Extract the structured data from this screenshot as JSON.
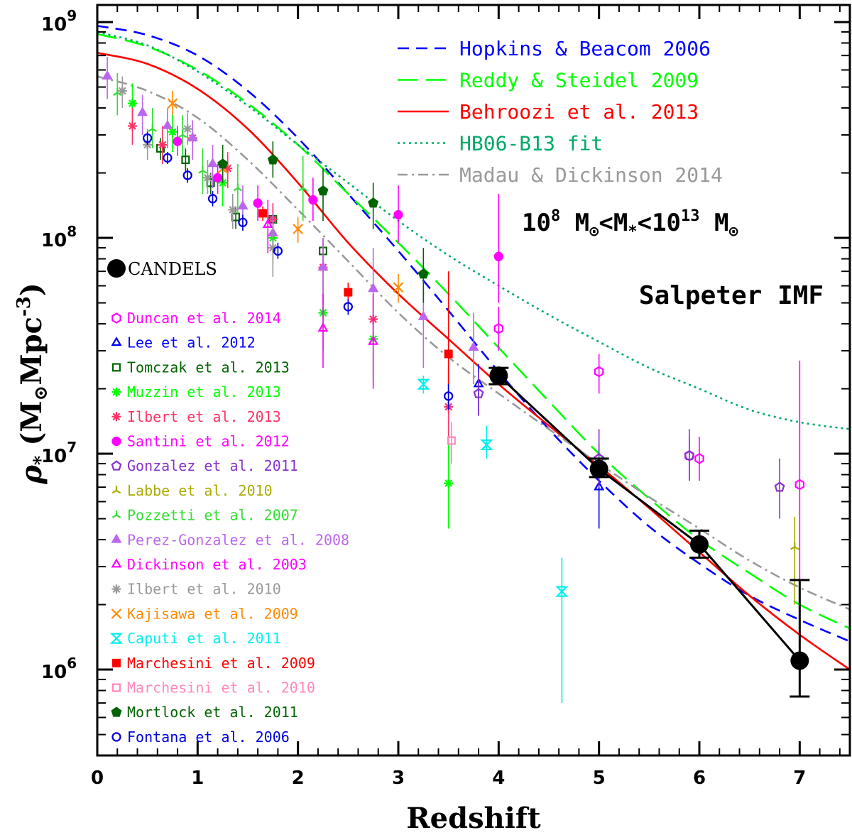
{
  "chart_data": {
    "type": "scatter",
    "xlabel": "Redshift",
    "ylabel": {
      "rho": "ρ",
      "sub": "*",
      "open": " (M",
      "sun": "⊙",
      "unit": "Mpc",
      "exp": "-3",
      "close": ")"
    },
    "xlim": [
      0,
      7.5
    ],
    "ylim": [
      400000,
      1200000000
    ],
    "yscale": "log",
    "x_ticks": [
      "0",
      "1",
      "2",
      "3",
      "4",
      "5",
      "6",
      "7"
    ],
    "y_ticks": [
      {
        "value": 1000000,
        "label": "10",
        "exp": "6"
      },
      {
        "value": 10000000,
        "label": "10",
        "exp": "7"
      },
      {
        "value": 100000000,
        "label": "10",
        "exp": "8"
      },
      {
        "value": 1000000000,
        "label": "10",
        "exp": "9"
      }
    ],
    "annotations": {
      "mass_range": {
        "a": "10",
        "a_exp": "8",
        "b": " M",
        "sun1": "⊙",
        "c": "<M",
        "sub": "*",
        "d": "<10",
        "d_exp": "13",
        "e": " M",
        "sun2": "⊙"
      },
      "imf": "Salpeter IMF"
    },
    "line_legend": [
      {
        "name": "Hopkins & Beacom 2006",
        "color": "#0000ff",
        "dash": "16,10"
      },
      {
        "name": "Reddy & Steidel 2009",
        "color": "#00ff00",
        "dash": "28,12"
      },
      {
        "name": "Behroozi et al. 2013",
        "color": "#ff0000",
        "dash": ""
      },
      {
        "name": "HB06-B13 fit",
        "color": "#00aa66",
        "dash": "3,5"
      },
      {
        "name": "Madau & Dickinson 2014",
        "color": "#999999",
        "dash": "14,6,3,6"
      }
    ],
    "curves": [
      {
        "name": "Hopkins & Beacom 2006",
        "x": [
          0,
          0.5,
          1,
          1.5,
          2,
          2.5,
          3,
          3.5,
          4,
          4.5,
          5,
          5.5,
          6,
          6.5,
          7,
          7.5
        ],
        "y": [
          960000000,
          870000000,
          700000000,
          480000000,
          290000000,
          160000000,
          87000000,
          46000000,
          24000000,
          13000000,
          7500000,
          4600000,
          3100000,
          2200000,
          1700000,
          1350000
        ]
      },
      {
        "name": "Reddy & Steidel 2009",
        "x": [
          0,
          0.5,
          1,
          1.5,
          2,
          2.5,
          3,
          3.5,
          4,
          4.5,
          5,
          5.5,
          6,
          6.5,
          7,
          7.5
        ],
        "y": [
          880000000,
          770000000,
          600000000,
          420000000,
          270000000,
          160000000,
          95000000,
          55000000,
          31000000,
          17500000,
          10000000,
          6200000,
          4000000,
          2800000,
          2000000,
          1550000
        ]
      },
      {
        "name": "Behroozi et al. 2013",
        "x": [
          0,
          0.5,
          1,
          1.5,
          2,
          2.5,
          3,
          3.5,
          4,
          4.5,
          5,
          5.5,
          6,
          6.5,
          7,
          7.5
        ],
        "y": [
          720000000,
          640000000,
          490000000,
          320000000,
          180000000,
          95000000,
          55000000,
          34000000,
          21000000,
          13500000,
          8800000,
          5600000,
          3500000,
          2200000,
          1450000,
          1000000
        ]
      },
      {
        "name": "HB06-B13 fit",
        "x": [
          0,
          0.5,
          1,
          1.5,
          2,
          2.5,
          3,
          3.5,
          4,
          4.5,
          5,
          5.5,
          6,
          6.5,
          7,
          7.5
        ],
        "y": [
          900000000,
          780000000,
          590000000,
          410000000,
          270000000,
          180000000,
          120000000,
          83000000,
          60000000,
          44000000,
          33000000,
          25000000,
          20000000,
          16000000,
          14000000,
          13000000
        ]
      },
      {
        "name": "Madau & Dickinson 2014",
        "x": [
          0,
          0.5,
          1,
          1.5,
          2,
          2.5,
          3,
          3.5,
          4,
          4.5,
          5,
          5.5,
          6,
          6.5,
          7,
          7.5
        ],
        "y": [
          560000000,
          480000000,
          360000000,
          230000000,
          135000000,
          78000000,
          45000000,
          28000000,
          19000000,
          13000000,
          9000000,
          6300000,
          4500000,
          3200000,
          2400000,
          1900000
        ]
      }
    ],
    "candels": {
      "label": "CANDELS",
      "color": "#000000",
      "x": [
        4,
        5,
        6,
        7
      ],
      "y": [
        23000000,
        8500000,
        3800000,
        1100000
      ],
      "yerr_lo": [
        21000000,
        7800000,
        3300000,
        750000
      ],
      "yerr_hi": [
        25000000,
        9500000,
        4400000,
        2600000
      ]
    },
    "series": [
      {
        "name": "Duncan et al. 2014",
        "color": "#ff00ff",
        "marker": "hexagon",
        "filled": false,
        "x": [
          4.0,
          5.0,
          5.9,
          6.0,
          7.0
        ],
        "y": [
          38000000,
          24000000,
          9800000,
          9500000,
          7200000
        ],
        "lo": [
          30000000,
          19000000,
          7500000,
          7500000,
          800000
        ],
        "hi": [
          48000000,
          29000000,
          12000000,
          12000000,
          27000000
        ]
      },
      {
        "name": "Lee et al. 2012",
        "color": "#0000ff",
        "marker": "triangle",
        "filled": false,
        "x": [
          3.8,
          5.0
        ],
        "y": [
          21000000,
          7000000
        ],
        "lo": [
          15000000,
          4500000
        ],
        "hi": [
          26000000,
          11000000
        ]
      },
      {
        "name": "Tomczak et al. 2013",
        "color": "#006400",
        "marker": "square",
        "filled": false,
        "x": [
          0.63,
          0.88,
          1.13,
          1.38,
          1.75,
          2.25
        ],
        "y": [
          260000000,
          230000000,
          180000000,
          125000000,
          122000000,
          87000000
        ],
        "lo": [
          230000000,
          200000000,
          160000000,
          110000000,
          105000000,
          72000000
        ],
        "hi": [
          290000000,
          260000000,
          200000000,
          140000000,
          140000000,
          100000000
        ]
      },
      {
        "name": "Muzzin et al. 2013",
        "color": "#00ff00",
        "marker": "asterisk",
        "filled": false,
        "x": [
          0.35,
          0.75,
          1.25,
          1.75,
          2.25,
          2.75,
          3.5
        ],
        "y": [
          420000000,
          310000000,
          180000000,
          100000000,
          45000000,
          34000000,
          7300000
        ],
        "lo": [
          330000000,
          250000000,
          140000000,
          75000000,
          30000000,
          22000000,
          4500000
        ],
        "hi": [
          520000000,
          380000000,
          220000000,
          130000000,
          65000000,
          50000000,
          12000000
        ]
      },
      {
        "name": "Ilbert et al. 2013",
        "color": "#ff3366",
        "marker": "asterisk",
        "filled": false,
        "x": [
          0.35,
          0.65,
          0.95,
          1.3,
          1.75,
          2.25,
          2.75,
          3.5
        ],
        "y": [
          330000000,
          270000000,
          290000000,
          210000000,
          122000000,
          73000000,
          42000000,
          16500000
        ],
        "lo": [
          270000000,
          220000000,
          240000000,
          170000000,
          100000000,
          55000000,
          32000000,
          11000000
        ],
        "hi": [
          400000000,
          330000000,
          350000000,
          250000000,
          145000000,
          95000000,
          55000000,
          25000000
        ]
      },
      {
        "name": "Santini et al. 2012",
        "color": "#ff00ff",
        "marker": "circle",
        "filled": true,
        "x": [
          0.8,
          1.2,
          1.6,
          2.15,
          3.0,
          4.0
        ],
        "y": [
          280000000,
          190000000,
          145000000,
          150000000,
          128000000,
          82000000
        ],
        "lo": [
          240000000,
          160000000,
          120000000,
          120000000,
          95000000,
          50000000
        ],
        "hi": [
          330000000,
          220000000,
          175000000,
          190000000,
          175000000,
          160000000
        ]
      },
      {
        "name": "Gonzalez et al. 2011",
        "color": "#8833cc",
        "marker": "pentagon",
        "filled": false,
        "x": [
          3.8,
          5.0,
          5.9,
          6.8
        ],
        "y": [
          19000000,
          9500000,
          9800000,
          7000000
        ],
        "lo": [
          15000000,
          7000000,
          7500000,
          5000000
        ],
        "hi": [
          24000000,
          13000000,
          13000000,
          9500000
        ]
      },
      {
        "name": "Labbe et al. 2010",
        "color": "#aaaa00",
        "marker": "tri-y",
        "filled": false,
        "x": [
          6.95
        ],
        "y": [
          3700000
        ],
        "lo": [
          2000000
        ],
        "hi": [
          5100000
        ]
      },
      {
        "name": "Pozzetti et al. 2007",
        "color": "#33dd33",
        "marker": "tri-y",
        "filled": false,
        "x": [
          0.2,
          0.55,
          0.85,
          1.05,
          1.4,
          2.05
        ],
        "y": [
          470000000,
          320000000,
          300000000,
          205000000,
          170000000,
          170000000
        ],
        "lo": [
          370000000,
          260000000,
          240000000,
          160000000,
          130000000,
          120000000
        ],
        "hi": [
          580000000,
          400000000,
          370000000,
          260000000,
          220000000,
          240000000
        ]
      },
      {
        "name": "Perez-Gonzalez et al. 2008",
        "color": "#bb66ee",
        "marker": "triangle",
        "filled": true,
        "x": [
          0.1,
          0.45,
          0.7,
          0.95,
          1.15,
          1.45,
          1.75,
          2.25,
          2.75,
          3.25,
          3.75
        ],
        "y": [
          560000000,
          380000000,
          330000000,
          290000000,
          220000000,
          140000000,
          105000000,
          73000000,
          58000000,
          43000000,
          31000000
        ],
        "lo": [
          440000000,
          300000000,
          260000000,
          230000000,
          170000000,
          110000000,
          80000000,
          50000000,
          35000000,
          25000000,
          21000000
        ],
        "hi": [
          690000000,
          460000000,
          400000000,
          350000000,
          270000000,
          175000000,
          130000000,
          100000000,
          90000000,
          75000000,
          45000000
        ]
      },
      {
        "name": "Dickinson et al. 2003",
        "color": "#ff00ff",
        "marker": "triangle",
        "filled": false,
        "x": [
          1.7,
          2.25,
          2.75
        ],
        "y": [
          115000000,
          38000000,
          33000000
        ],
        "lo": [
          85000000,
          25000000,
          20000000
        ],
        "hi": [
          150000000,
          55000000,
          55000000
        ]
      },
      {
        "name": "Ilbert et al. 2010",
        "color": "#999999",
        "marker": "asterisk",
        "filled": false,
        "x": [
          0.25,
          0.5,
          0.9,
          1.1,
          1.35,
          1.75
        ],
        "y": [
          480000000,
          270000000,
          320000000,
          190000000,
          135000000,
          90000000
        ],
        "lo": [
          400000000,
          230000000,
          270000000,
          160000000,
          110000000,
          66000000
        ],
        "hi": [
          560000000,
          320000000,
          380000000,
          230000000,
          160000000,
          115000000
        ]
      },
      {
        "name": "Kajisawa et al. 2009",
        "color": "#ff8800",
        "marker": "cross",
        "filled": false,
        "x": [
          0.75,
          1.25,
          2.0,
          3.0
        ],
        "y": [
          420000000,
          210000000,
          110000000,
          59000000
        ],
        "lo": [
          370000000,
          180000000,
          95000000,
          50000000
        ],
        "hi": [
          480000000,
          240000000,
          125000000,
          68000000
        ]
      },
      {
        "name": "Caputi et al. 2011",
        "color": "#00eeee",
        "marker": "hourglass",
        "filled": false,
        "x": [
          3.25,
          3.88,
          4.63
        ],
        "y": [
          21000000,
          11000000,
          2300000
        ],
        "lo": [
          19000000,
          9500000,
          700000
        ],
        "hi": [
          23000000,
          13500000,
          3300000
        ]
      },
      {
        "name": "Marchesini et al. 2009",
        "color": "#ff0000",
        "marker": "square",
        "filled": true,
        "x": [
          1.65,
          2.5,
          3.5
        ],
        "y": [
          130000000,
          56000000,
          29000000
        ],
        "lo": [
          120000000,
          50000000,
          16000000
        ],
        "hi": [
          140000000,
          62000000,
          70000000
        ]
      },
      {
        "name": "Marchesini et al. 2010",
        "color": "#ff88bb",
        "marker": "square",
        "filled": false,
        "x": [
          3.53
        ],
        "y": [
          11500000
        ],
        "lo": [
          9000000
        ],
        "hi": [
          14000000
        ]
      },
      {
        "name": "Mortlock et al. 2011",
        "color": "#006400",
        "marker": "pentagon",
        "filled": true,
        "x": [
          1.25,
          1.75,
          2.25,
          2.75,
          3.25
        ],
        "y": [
          220000000,
          230000000,
          165000000,
          145000000,
          68000000
        ],
        "lo": [
          180000000,
          190000000,
          120000000,
          110000000,
          50000000
        ],
        "hi": [
          270000000,
          280000000,
          210000000,
          180000000,
          90000000
        ]
      },
      {
        "name": "Fontana et al. 2006",
        "color": "#0000dd",
        "marker": "circle",
        "filled": false,
        "x": [
          0.5,
          0.7,
          0.9,
          1.15,
          1.45,
          1.8,
          2.5,
          3.5
        ],
        "y": [
          290000000,
          235000000,
          195000000,
          152000000,
          118000000,
          87000000,
          48000000,
          18500000
        ],
        "lo": [
          270000000,
          220000000,
          180000000,
          140000000,
          108000000,
          80000000,
          44000000,
          16000000
        ],
        "hi": [
          310000000,
          250000000,
          210000000,
          165000000,
          128000000,
          95000000,
          52000000,
          21000000
        ]
      }
    ]
  }
}
